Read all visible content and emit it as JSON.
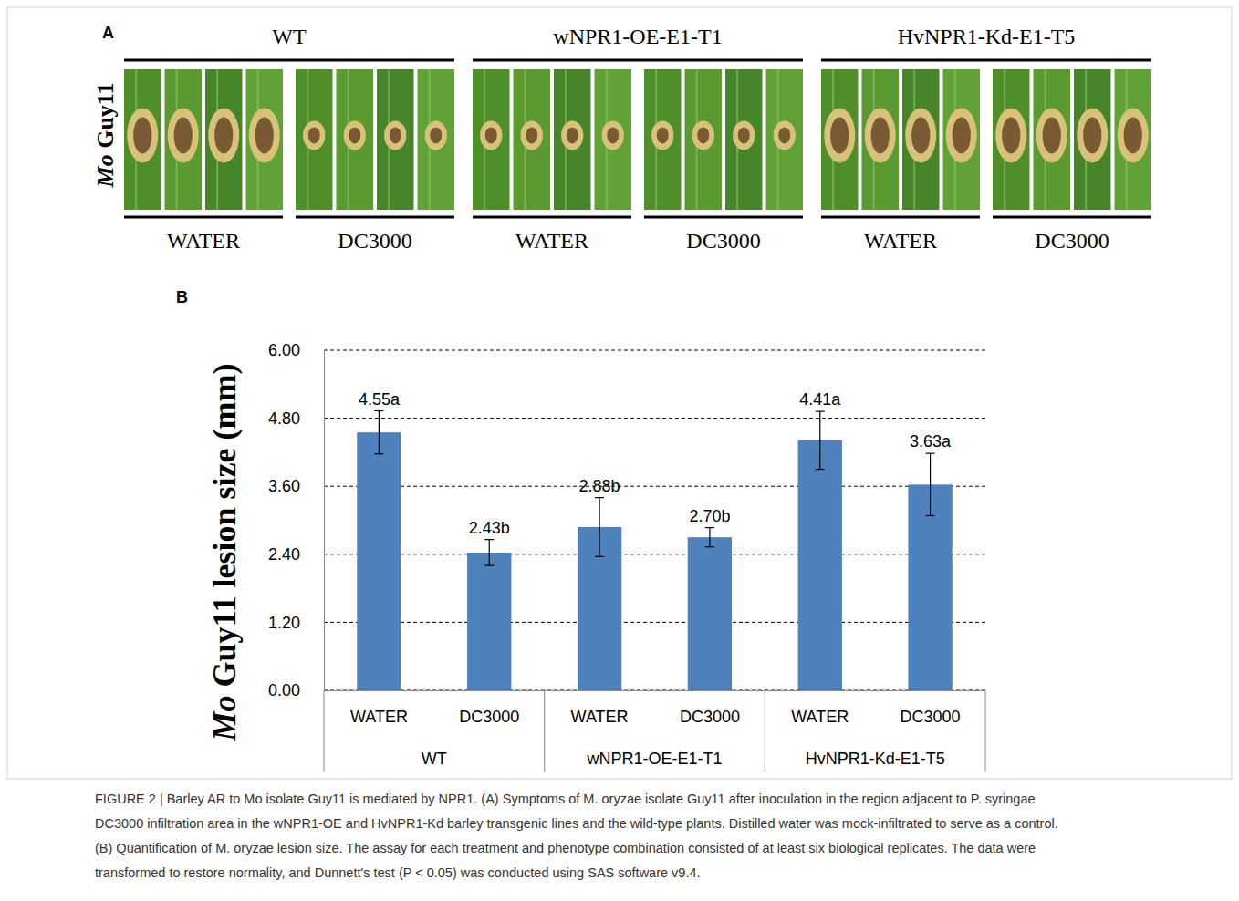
{
  "panel_a": {
    "label": "A",
    "side_label": "Mo Guy11",
    "groups": [
      {
        "title": "WT",
        "treatments": [
          "WATER",
          "DC3000"
        ]
      },
      {
        "title": "wNPR1-OE-E1-T1",
        "treatments": [
          "WATER",
          "DC3000"
        ]
      },
      {
        "title": "HvNPR1-Kd-E1-T5",
        "treatments": [
          "WATER",
          "DC3000"
        ]
      }
    ]
  },
  "chart_data": {
    "type": "bar",
    "panel_label": "B",
    "y_label": "Mo Guy11 lesion size (mm)",
    "categories": [
      "WATER",
      "DC3000",
      "WATER",
      "DC3000",
      "WATER",
      "DC3000"
    ],
    "groups": [
      "WT",
      "wNPR1-OE-E1-T1",
      "HvNPR1-Kd-E1-T5"
    ],
    "values": [
      4.55,
      2.43,
      2.88,
      2.7,
      4.41,
      3.63
    ],
    "value_labels": [
      "4.55a",
      "2.43b",
      "2.88b",
      "2.70b",
      "4.41a",
      "3.63a"
    ],
    "errors": [
      0.38,
      0.23,
      0.52,
      0.17,
      0.51,
      0.55
    ],
    "color": "#4f81bd",
    "ylim": [
      0,
      6
    ],
    "yticks": [
      {
        "value": 0,
        "label": "0.00"
      },
      {
        "value": 1.2,
        "label": "1.20"
      },
      {
        "value": 2.4,
        "label": "2.40"
      },
      {
        "value": 3.6,
        "label": "3.60"
      },
      {
        "value": 4.8,
        "label": "4.80"
      },
      {
        "value": 6,
        "label": "6.00"
      }
    ],
    "grid": true,
    "data_labels": true
  },
  "caption": [
    "FIGURE 2 | Barley AR to Mo isolate Guy11 is mediated by NPR1. (A) Symptoms of M. oryzae isolate Guy11 after inoculation in the region adjacent to P. syringae",
    "DC3000 infiltration area in the wNPR1-OE and HvNPR1-Kd barley transgenic lines and the wild-type plants. Distilled water was mock-infiltrated to serve as a control.",
    "(B) Quantification of M. oryzae lesion size. The assay for each treatment and phenotype combination consisted of at least six biological replicates. The data were",
    "transformed to restore normality, and Dunnett's test (P < 0.05) was conducted using SAS software v9.4."
  ]
}
